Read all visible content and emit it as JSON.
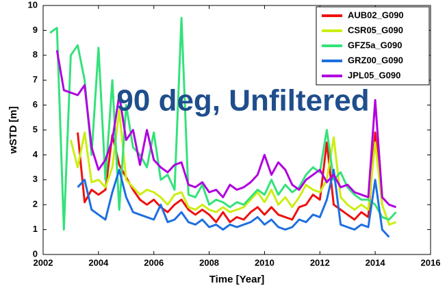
{
  "chart_data": {
    "type": "line",
    "title": "90 deg, Unfiltered",
    "xlabel": "Time [Year]",
    "ylabel": "wSTD [m]",
    "x": [
      2002.25,
      2002.5,
      2002.75,
      2003.0,
      2003.25,
      2003.5,
      2003.75,
      2004.0,
      2004.25,
      2004.5,
      2004.75,
      2005.0,
      2005.25,
      2005.5,
      2005.75,
      2006.0,
      2006.25,
      2006.5,
      2006.75,
      2007.0,
      2007.25,
      2007.5,
      2007.75,
      2008.0,
      2008.25,
      2008.5,
      2008.75,
      2009.0,
      2009.25,
      2009.5,
      2009.75,
      2010.0,
      2010.25,
      2010.5,
      2010.75,
      2011.0,
      2011.25,
      2011.5,
      2011.75,
      2012.0,
      2012.25,
      2012.5,
      2012.75,
      2013.0,
      2013.25,
      2013.5,
      2013.75,
      2014.0,
      2014.25,
      2014.5,
      2014.75
    ],
    "series": [
      {
        "name": "AUB02_G090",
        "color": "#ee1111",
        "values": [
          null,
          null,
          null,
          null,
          4.9,
          2.1,
          2.6,
          2.4,
          2.6,
          4.8,
          3.6,
          3.1,
          2.6,
          2.2,
          2.0,
          2.2,
          1.9,
          1.7,
          2.0,
          2.2,
          1.8,
          1.6,
          1.8,
          1.6,
          1.3,
          1.7,
          1.3,
          1.5,
          1.4,
          1.7,
          1.9,
          1.6,
          1.9,
          1.6,
          1.5,
          1.4,
          1.9,
          2.0,
          2.4,
          2.2,
          4.5,
          2.0,
          1.8,
          1.6,
          1.4,
          1.7,
          1.5,
          4.9,
          2.0,
          null,
          null
        ]
      },
      {
        "name": "CSR05_G090",
        "color": "#ccee11",
        "values": [
          null,
          null,
          null,
          4.6,
          3.5,
          4.9,
          2.9,
          3.0,
          2.7,
          3.5,
          5.8,
          3.0,
          2.7,
          2.4,
          2.6,
          2.5,
          2.3,
          2.0,
          2.4,
          2.5,
          1.9,
          1.8,
          2.0,
          1.8,
          1.7,
          1.9,
          1.7,
          1.8,
          1.9,
          2.2,
          2.5,
          2.1,
          2.6,
          2.0,
          2.3,
          1.9,
          2.3,
          2.8,
          2.6,
          2.5,
          3.0,
          4.7,
          2.3,
          2.0,
          1.8,
          2.0,
          1.8,
          4.5,
          2.0,
          1.2,
          1.3
        ]
      },
      {
        "name": "GFZ5a_G090",
        "color": "#33e27a",
        "values": [
          8.9,
          9.1,
          1.0,
          8.0,
          8.4,
          7.0,
          4.0,
          8.3,
          3.0,
          7.0,
          1.8,
          6.0,
          4.3,
          4.0,
          3.5,
          4.9,
          3.0,
          3.2,
          2.6,
          9.5,
          2.4,
          2.3,
          2.8,
          2.0,
          2.2,
          2.1,
          1.9,
          2.1,
          2.0,
          2.3,
          2.6,
          2.4,
          3.0,
          2.4,
          2.8,
          2.5,
          2.7,
          3.2,
          3.5,
          3.3,
          5.0,
          3.0,
          3.3,
          2.7,
          2.4,
          2.2,
          2.2,
          2.0,
          1.5,
          1.4,
          1.7
        ]
      },
      {
        "name": "GRZ00_G090",
        "color": "#1e6fe0",
        "values": [
          null,
          null,
          null,
          null,
          2.7,
          3.0,
          1.8,
          1.6,
          1.4,
          2.5,
          3.4,
          2.3,
          1.7,
          1.6,
          1.5,
          1.4,
          2.0,
          1.3,
          1.4,
          1.7,
          1.3,
          1.2,
          1.4,
          1.1,
          1.2,
          1.0,
          1.2,
          1.1,
          1.2,
          1.3,
          1.5,
          1.2,
          1.4,
          1.1,
          1.0,
          1.1,
          1.4,
          1.3,
          1.6,
          1.5,
          2.2,
          3.4,
          1.2,
          1.1,
          1.0,
          1.2,
          1.1,
          3.0,
          1.0,
          0.7,
          null
        ]
      },
      {
        "name": "JPL05_G090",
        "color": "#b000e0",
        "values": [
          null,
          8.2,
          6.6,
          6.5,
          6.4,
          6.8,
          4.3,
          3.4,
          3.8,
          4.6,
          6.4,
          4.6,
          5.0,
          3.6,
          5.0,
          3.8,
          3.5,
          3.3,
          3.6,
          3.7,
          2.8,
          2.7,
          2.9,
          2.5,
          2.6,
          2.3,
          2.8,
          2.6,
          2.7,
          2.9,
          3.2,
          4.0,
          3.2,
          3.7,
          3.4,
          2.8,
          2.6,
          3.0,
          3.2,
          3.4,
          2.9,
          3.2,
          2.7,
          2.8,
          2.5,
          2.4,
          2.3,
          6.2,
          2.3,
          2.0,
          1.9
        ]
      }
    ],
    "xlim": [
      2002,
      2016
    ],
    "xticks": [
      2002,
      2004,
      2006,
      2008,
      2010,
      2012,
      2014,
      2016
    ],
    "ylim": [
      0,
      10
    ],
    "yticks": [
      0,
      1,
      2,
      3,
      4,
      5,
      6,
      7,
      8,
      9,
      10
    ],
    "legend": "upper right"
  }
}
